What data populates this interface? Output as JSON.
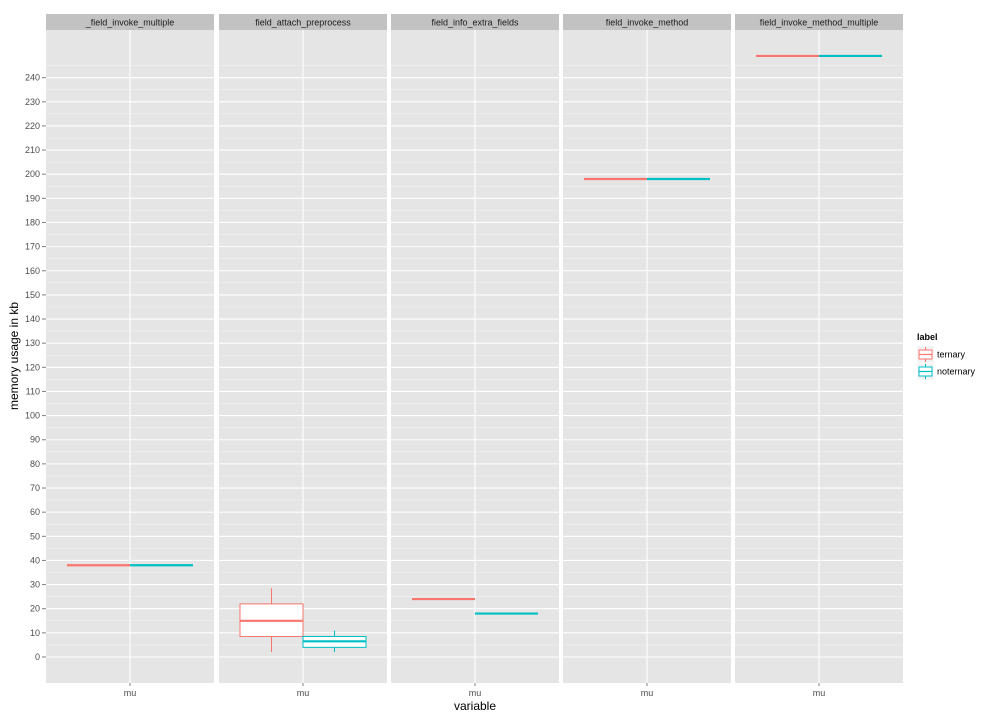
{
  "chart_data": {
    "type": "boxplot",
    "xlabel": "variable",
    "ylabel": "memory usage in kb",
    "ylim": [
      -10,
      268
    ],
    "yticks": [
      0,
      10,
      20,
      30,
      40,
      50,
      60,
      70,
      80,
      90,
      100,
      110,
      120,
      130,
      140,
      150,
      160,
      170,
      180,
      190,
      200,
      210,
      220,
      230,
      240
    ],
    "grid": true,
    "legend": {
      "title": "label",
      "position": "right",
      "entries": [
        {
          "name": "ternary",
          "color": "#F8766D"
        },
        {
          "name": "noternary",
          "color": "#00BFC4"
        }
      ]
    },
    "panels": [
      {
        "title": "_field_invoke_multiple",
        "category": "mu",
        "boxes": [
          {
            "label": "ternary",
            "min": 38,
            "q1": 38,
            "median": 38,
            "q3": 38,
            "max": 38
          },
          {
            "label": "noternary",
            "min": 38,
            "q1": 38,
            "median": 38,
            "q3": 38,
            "max": 38
          }
        ]
      },
      {
        "title": "field_attach_preprocess",
        "category": "mu",
        "boxes": [
          {
            "label": "ternary",
            "min": 2,
            "q1": 8.5,
            "median": 15,
            "q3": 22,
            "max": 28.5
          },
          {
            "label": "noternary",
            "min": 2,
            "q1": 4,
            "median": 6.5,
            "q3": 8.5,
            "max": 11
          }
        ]
      },
      {
        "title": "field_info_extra_fields",
        "category": "mu",
        "boxes": [
          {
            "label": "ternary",
            "min": 24,
            "q1": 24,
            "median": 24,
            "q3": 24,
            "max": 24
          },
          {
            "label": "noternary",
            "min": 18,
            "q1": 18,
            "median": 18,
            "q3": 18,
            "max": 18
          }
        ]
      },
      {
        "title": "field_invoke_method",
        "category": "mu",
        "boxes": [
          {
            "label": "ternary",
            "min": 198,
            "q1": 198,
            "median": 198,
            "q3": 198,
            "max": 198
          },
          {
            "label": "noternary",
            "min": 198,
            "q1": 198,
            "median": 198,
            "q3": 198,
            "max": 198
          }
        ]
      },
      {
        "title": "field_invoke_method_multiple",
        "category": "mu",
        "boxes": [
          {
            "label": "ternary",
            "min": 249,
            "q1": 249,
            "median": 249,
            "q3": 249,
            "max": 249
          },
          {
            "label": "noternary",
            "min": 249,
            "q1": 249,
            "median": 249,
            "q3": 249,
            "max": 249
          }
        ]
      }
    ]
  }
}
